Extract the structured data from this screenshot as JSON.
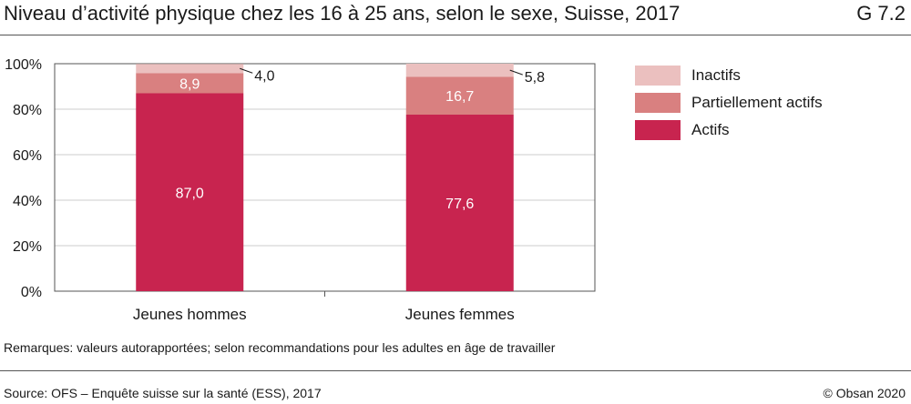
{
  "header": {
    "title": "Niveau d’activité physique chez les 16 à 25 ans, selon le sexe, Suisse, 2017",
    "figure_number": "G 7.2"
  },
  "footer": {
    "remarks": "Remarques: valeurs autorapportées; selon recommandations pour les adultes en âge de travailler",
    "source": "Source: OFS – Enquête suisse sur la santé (ESS), 2017",
    "copyright": "© Obsan 2020"
  },
  "colors": {
    "actifs": "#c8244f",
    "partiellement_actifs": "#d98080",
    "inactifs": "#ebc0bf",
    "grid": "#cccccc",
    "axis": "#555555"
  },
  "chart_data": {
    "type": "bar",
    "stacked": true,
    "categories": [
      "Jeunes hommes",
      "Jeunes femmes"
    ],
    "series": [
      {
        "name": "Actifs",
        "values": [
          87.0,
          77.6
        ],
        "labels": [
          "87,0",
          "77,6"
        ],
        "color": "#c8244f"
      },
      {
        "name": "Partiellement actifs",
        "values": [
          8.9,
          16.7
        ],
        "labels": [
          "8,9",
          "16,7"
        ],
        "color": "#d98080"
      },
      {
        "name": "Inactifs",
        "values": [
          4.0,
          5.8
        ],
        "labels": [
          "4,0",
          "5,8"
        ],
        "color": "#ebc0bf"
      }
    ],
    "legend_order": [
      "Inactifs",
      "Partiellement actifs",
      "Actifs"
    ],
    "ylim": [
      0,
      100
    ],
    "yticks": [
      0,
      20,
      40,
      60,
      80,
      100
    ],
    "ytick_labels": [
      "0%",
      "20%",
      "40%",
      "60%",
      "80%",
      "100%"
    ],
    "grid": true,
    "legend": "right"
  }
}
